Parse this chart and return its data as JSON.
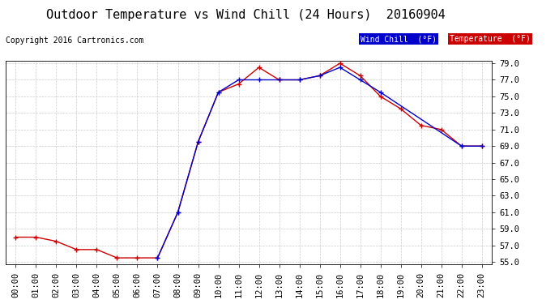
{
  "title": "Outdoor Temperature vs Wind Chill (24 Hours)  20160904",
  "copyright": "Copyright 2016 Cartronics.com",
  "background_color": "#ffffff",
  "grid_color": "#cccccc",
  "hours": [
    "00:00",
    "01:00",
    "02:00",
    "03:00",
    "04:00",
    "05:00",
    "06:00",
    "07:00",
    "08:00",
    "09:00",
    "10:00",
    "11:00",
    "12:00",
    "13:00",
    "14:00",
    "15:00",
    "16:00",
    "17:00",
    "18:00",
    "19:00",
    "20:00",
    "21:00",
    "22:00",
    "23:00"
  ],
  "temperature": [
    58.0,
    58.0,
    57.5,
    56.5,
    56.5,
    55.5,
    55.5,
    55.5,
    61.0,
    69.5,
    75.5,
    76.5,
    78.5,
    77.0,
    77.0,
    77.5,
    79.0,
    77.5,
    75.0,
    73.5,
    71.5,
    71.0,
    69.0,
    69.0
  ],
  "wind_chill": [
    null,
    null,
    null,
    null,
    null,
    null,
    null,
    55.5,
    61.0,
    69.5,
    75.5,
    77.0,
    77.0,
    77.0,
    77.0,
    77.5,
    78.5,
    77.0,
    75.5,
    null,
    null,
    null,
    69.0,
    69.0
  ],
  "temp_color": "#cc0000",
  "wind_chill_color": "#0000cc",
  "ylim_min": 55.0,
  "ylim_max": 79.0,
  "yticks": [
    55.0,
    57.0,
    59.0,
    61.0,
    63.0,
    65.0,
    67.0,
    69.0,
    71.0,
    73.0,
    75.0,
    77.0,
    79.0
  ],
  "legend_wind_label": "Wind Chill  (°F)",
  "legend_temp_label": "Temperature  (°F)",
  "legend_wind_bg": "#0000cc",
  "legend_temp_bg": "#cc0000",
  "title_fontsize": 11,
  "copyright_fontsize": 7,
  "tick_fontsize": 7.5
}
